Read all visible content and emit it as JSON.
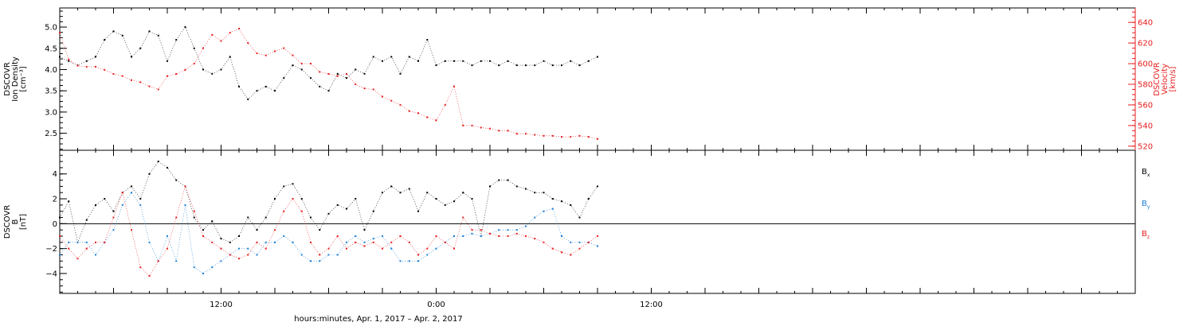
{
  "colors": {
    "black": "#000000",
    "red": "#e81d1d",
    "blue": "#1b7fd6"
  },
  "xaxis": {
    "title": "hours:minutes, Apr.  1, 2017 – Apr.  2, 2017",
    "start_hours": 3,
    "end_hours": 63,
    "ticks": [
      {
        "hours": 12,
        "label": "12:00"
      },
      {
        "hours": 24,
        "label": "0:00"
      },
      {
        "hours": 36,
        "label": "12:00"
      }
    ]
  },
  "chart_data": [
    {
      "type": "scatter",
      "panel": "top",
      "yaxis_left": {
        "label_lines": [
          "DSCOVR",
          "Ion Density",
          "[cm⁻³]"
        ],
        "ylim": [
          2.1,
          5.45
        ],
        "ticks": [
          2.5,
          3.0,
          3.5,
          4.0,
          4.5,
          5.0
        ],
        "tick_labels": [
          "2.5",
          "3.0",
          "3.5",
          "4.0",
          "4.5",
          "5.0"
        ]
      },
      "yaxis_right": {
        "label_lines": [
          "DSCOVR",
          "Velocity",
          "[km/s]"
        ],
        "ylim": [
          516,
          654
        ],
        "ticks": [
          520,
          540,
          560,
          580,
          600,
          620,
          640
        ],
        "tick_labels": [
          "520",
          "540",
          "560",
          "580",
          "600",
          "620",
          "640"
        ]
      },
      "series": [
        {
          "color": "black",
          "axis": "left",
          "x": [
            3.0,
            3.5,
            4.0,
            4.5,
            5.0,
            5.5,
            6.0,
            6.5,
            7.0,
            7.5,
            8.0,
            8.5,
            9.0,
            9.5,
            10.0,
            10.5,
            11.0,
            11.5,
            12.0,
            12.5,
            13.0,
            13.5,
            14.0,
            14.5,
            15.0,
            15.5,
            16.0,
            16.5,
            17.0,
            17.5,
            18.0,
            18.5,
            19.0,
            19.5,
            20.0,
            20.5,
            21.0,
            21.5,
            22.0,
            22.5,
            23.0,
            23.5,
            24.0,
            24.5,
            25.0,
            25.5,
            26.0,
            26.5,
            27.0,
            27.5,
            28.0,
            28.5,
            29.0,
            29.5,
            30.0,
            30.5,
            31.0,
            31.5,
            32.0,
            32.5,
            33.0
          ],
          "y": [
            4.3,
            4.2,
            4.1,
            4.2,
            4.3,
            4.7,
            4.9,
            4.8,
            4.3,
            4.5,
            4.9,
            4.8,
            4.2,
            4.7,
            5.0,
            4.5,
            4.0,
            3.9,
            4.0,
            4.3,
            3.6,
            3.3,
            3.5,
            3.6,
            3.5,
            3.8,
            4.1,
            4.0,
            3.8,
            3.6,
            3.5,
            3.9,
            3.8,
            4.0,
            3.9,
            4.3,
            4.2,
            4.3,
            3.9,
            4.3,
            4.2,
            4.7,
            4.1,
            4.2,
            4.2,
            4.2,
            4.1,
            4.2,
            4.2,
            4.1,
            4.2,
            4.1,
            4.1,
            4.1,
            4.2,
            4.1,
            4.1,
            4.2,
            4.1,
            4.2,
            4.3
          ]
        },
        {
          "color": "red",
          "axis": "right",
          "x": [
            3.0,
            3.5,
            4.0,
            4.5,
            5.0,
            5.5,
            6.0,
            6.5,
            7.0,
            7.5,
            8.0,
            8.5,
            9.0,
            9.5,
            10.0,
            10.5,
            11.0,
            11.5,
            12.0,
            12.5,
            13.0,
            13.5,
            14.0,
            14.5,
            15.0,
            15.5,
            16.0,
            16.5,
            17.0,
            17.5,
            18.0,
            18.5,
            19.0,
            19.5,
            20.0,
            20.5,
            21.0,
            21.5,
            22.0,
            22.5,
            23.0,
            23.5,
            24.0,
            24.5,
            25.0,
            25.5,
            26.0,
            26.5,
            27.0,
            27.5,
            28.0,
            28.5,
            29.0,
            29.5,
            30.0,
            30.5,
            31.0,
            31.5,
            32.0,
            32.5,
            33.0
          ],
          "y": [
            630,
            604,
            598,
            597,
            597,
            594,
            590,
            588,
            584,
            582,
            578,
            575,
            588,
            590,
            594,
            600,
            615,
            628,
            622,
            630,
            634,
            620,
            610,
            608,
            612,
            615,
            608,
            600,
            600,
            592,
            590,
            588,
            590,
            580,
            576,
            575,
            568,
            564,
            560,
            554,
            552,
            548,
            545,
            560,
            578,
            540,
            540,
            538,
            537,
            535,
            535,
            532,
            532,
            531,
            530,
            530,
            529,
            529,
            530,
            529,
            527
          ]
        }
      ]
    },
    {
      "type": "scatter",
      "panel": "bottom",
      "yaxis_left": {
        "label_lines": [
          "DSCOVR",
          "B",
          "[nT]"
        ],
        "ylim": [
          -5.6,
          5.9
        ],
        "ticks": [
          -4,
          -2,
          0,
          2,
          4
        ],
        "tick_labels": [
          "−4",
          "−2",
          "0",
          "2",
          "4"
        ],
        "zero_line": true
      },
      "legend": {
        "placement": "right",
        "entries": [
          "Bx",
          "By",
          "Bz"
        ]
      },
      "series": [
        {
          "name": "Bx",
          "color": "black",
          "x": [
            3.0,
            3.5,
            4.0,
            4.5,
            5.0,
            5.5,
            6.0,
            6.5,
            7.0,
            7.5,
            8.0,
            8.5,
            9.0,
            9.5,
            10.0,
            10.5,
            11.0,
            11.5,
            12.0,
            12.5,
            13.0,
            13.5,
            14.0,
            14.5,
            15.0,
            15.5,
            16.0,
            16.5,
            17.0,
            17.5,
            18.0,
            18.5,
            19.0,
            19.5,
            20.0,
            20.5,
            21.0,
            21.5,
            22.0,
            22.5,
            23.0,
            23.5,
            24.0,
            24.5,
            25.0,
            25.5,
            26.0,
            26.5,
            27.0,
            27.5,
            28.0,
            28.5,
            29.0,
            29.5,
            30.0,
            30.5,
            31.0,
            31.5,
            32.0,
            32.5,
            33.0
          ],
          "y": [
            0.5,
            1.8,
            -1.5,
            0.3,
            1.5,
            2.0,
            1.0,
            2.5,
            3.0,
            2.0,
            4.0,
            5.0,
            4.5,
            3.5,
            3.0,
            0.5,
            -0.5,
            0.2,
            -1.2,
            -1.5,
            -1.0,
            0.5,
            -0.5,
            0.5,
            2.0,
            3.0,
            3.2,
            2.0,
            0.5,
            -0.5,
            0.8,
            1.5,
            1.2,
            2.0,
            -0.5,
            1.0,
            2.5,
            3.0,
            2.5,
            2.8,
            1.0,
            2.5,
            2.0,
            1.5,
            1.8,
            2.5,
            2.0,
            -1.0,
            3.0,
            3.5,
            3.5,
            3.0,
            2.8,
            2.5,
            2.5,
            2.0,
            1.8,
            1.5,
            0.5,
            2.0,
            3.0
          ]
        },
        {
          "name": "By",
          "color": "blue",
          "x": [
            3.0,
            3.5,
            4.0,
            4.5,
            5.0,
            5.5,
            6.0,
            6.5,
            7.0,
            7.5,
            8.0,
            8.5,
            9.0,
            9.5,
            10.0,
            10.5,
            11.0,
            11.5,
            12.0,
            12.5,
            13.0,
            13.5,
            14.0,
            14.5,
            15.0,
            15.5,
            16.0,
            16.5,
            17.0,
            17.5,
            18.0,
            18.5,
            19.0,
            19.5,
            20.0,
            20.5,
            21.0,
            21.5,
            22.0,
            22.5,
            23.0,
            23.5,
            24.0,
            24.5,
            25.0,
            25.5,
            26.0,
            26.5,
            27.0,
            27.5,
            28.0,
            28.5,
            29.0,
            29.5,
            30.0,
            30.5,
            31.0,
            31.5,
            32.0,
            32.5,
            33.0
          ],
          "y": [
            -2.5,
            -1.5,
            -1.5,
            -1.5,
            -2.5,
            -1.5,
            -0.5,
            1.5,
            2.5,
            1.5,
            -1.5,
            -3.0,
            -1.0,
            -3.0,
            1.5,
            -3.5,
            -4.0,
            -3.5,
            -3.0,
            -2.5,
            -2.0,
            -2.0,
            -2.5,
            -1.5,
            -1.5,
            -1.0,
            -1.5,
            -2.5,
            -3.0,
            -3.0,
            -2.5,
            -2.5,
            -1.5,
            -1.0,
            -1.5,
            -1.2,
            -1.0,
            -2.0,
            -3.0,
            -3.0,
            -3.0,
            -2.5,
            -2.0,
            -1.5,
            -1.0,
            -1.0,
            -0.8,
            -1.0,
            -0.8,
            -0.5,
            -0.5,
            -0.5,
            -0.2,
            0.5,
            1.0,
            1.2,
            -1.0,
            -1.5,
            -1.5,
            -1.5,
            -1.8
          ]
        },
        {
          "name": "Bz",
          "color": "red",
          "x": [
            3.0,
            3.5,
            4.0,
            4.5,
            5.0,
            5.5,
            6.0,
            6.5,
            7.0,
            7.5,
            8.0,
            8.5,
            9.0,
            9.5,
            10.0,
            10.5,
            11.0,
            11.5,
            12.0,
            12.5,
            13.0,
            13.5,
            14.0,
            14.5,
            15.0,
            15.5,
            16.0,
            16.5,
            17.0,
            17.5,
            18.0,
            18.5,
            19.0,
            19.5,
            20.0,
            20.5,
            21.0,
            21.5,
            22.0,
            22.5,
            23.0,
            23.5,
            24.0,
            24.5,
            25.0,
            25.5,
            26.0,
            26.5,
            27.0,
            27.5,
            28.0,
            28.5,
            29.0,
            29.5,
            30.0,
            30.5,
            31.0,
            31.5,
            32.0,
            32.5,
            33.0
          ],
          "y": [
            -1.0,
            -2.0,
            -2.8,
            -2.0,
            -1.5,
            -1.5,
            0.5,
            2.5,
            -0.5,
            -3.5,
            -4.2,
            -3.0,
            -2.0,
            0.5,
            3.0,
            1.0,
            -1.0,
            -1.5,
            -2.0,
            -2.5,
            -2.8,
            -2.5,
            -1.5,
            -2.0,
            -0.5,
            1.0,
            2.0,
            1.0,
            -1.5,
            -2.5,
            -2.0,
            -1.0,
            -2.0,
            -1.5,
            -1.8,
            -1.5,
            -2.0,
            -1.5,
            -1.0,
            -1.5,
            -2.5,
            -2.0,
            -1.0,
            -1.5,
            -2.0,
            0.5,
            -0.5,
            -0.5,
            -0.8,
            -1.0,
            -1.0,
            -0.8,
            -1.0,
            -1.2,
            -1.5,
            -2.0,
            -2.3,
            -2.5,
            -2.0,
            -1.5,
            -1.0
          ]
        }
      ]
    }
  ]
}
